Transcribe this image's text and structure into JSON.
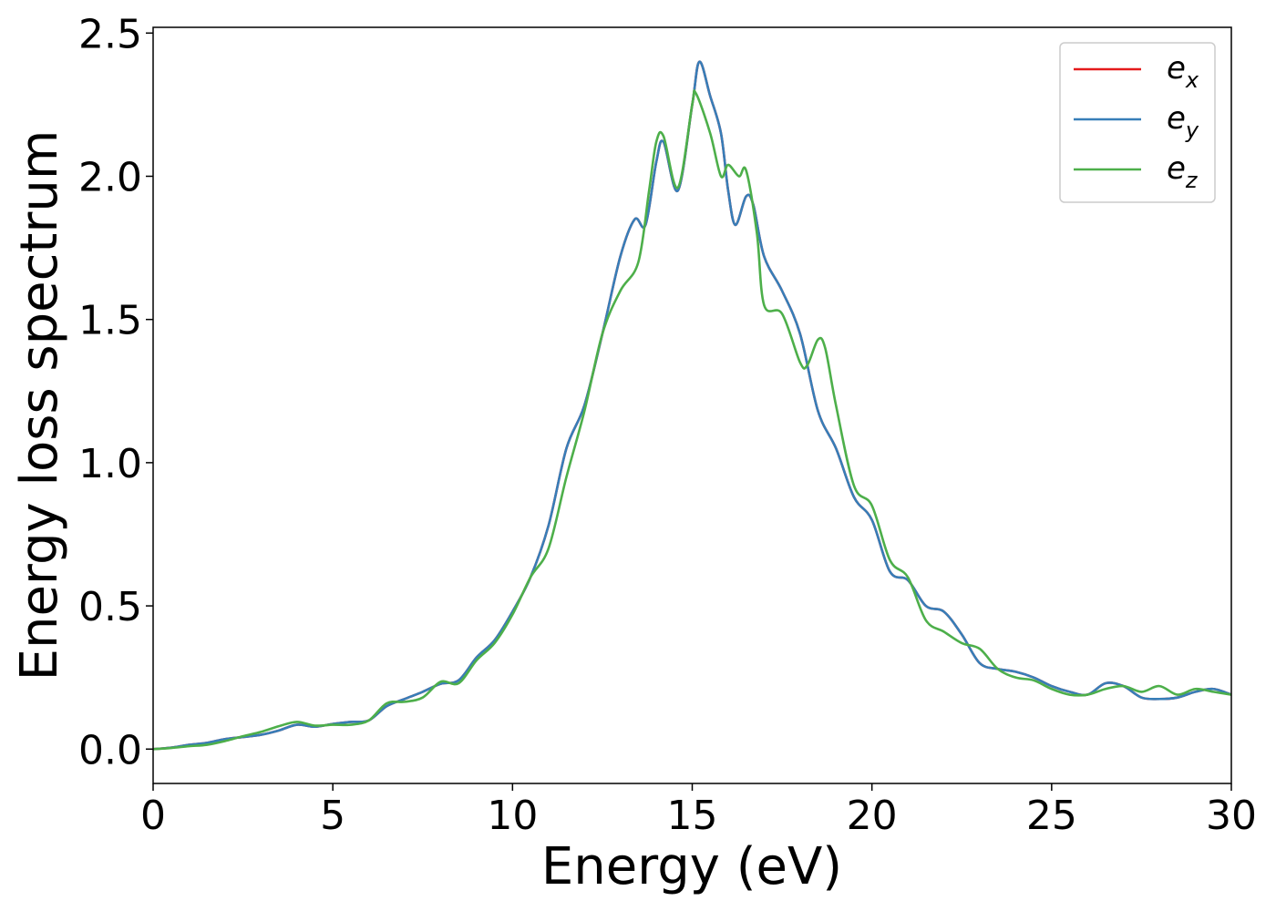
{
  "chart_data": {
    "type": "line",
    "xlabel": "Energy (eV)",
    "ylabel": "Energy loss spectrum",
    "xlim": [
      0,
      30
    ],
    "ylim": [
      -0.12,
      2.52
    ],
    "x_ticks": [
      0,
      5,
      10,
      15,
      20,
      25,
      30
    ],
    "x_tick_labels": [
      "0",
      "5",
      "10",
      "15",
      "20",
      "25",
      "30"
    ],
    "y_ticks": [
      0.0,
      0.5,
      1.0,
      1.5,
      2.0,
      2.5
    ],
    "y_tick_labels": [
      "0.0",
      "0.5",
      "1.0",
      "1.5",
      "2.0",
      "2.5"
    ],
    "grid": false,
    "legend_position": "top-right",
    "series": [
      {
        "name": "e",
        "subscript": "x",
        "color": "#e41a1c",
        "points": [
          [
            0,
            0.0
          ],
          [
            0.5,
            0.005
          ],
          [
            1,
            0.015
          ],
          [
            1.5,
            0.022
          ],
          [
            2,
            0.035
          ],
          [
            2.5,
            0.042
          ],
          [
            3,
            0.05
          ],
          [
            3.5,
            0.065
          ],
          [
            4,
            0.085
          ],
          [
            4.5,
            0.078
          ],
          [
            5,
            0.088
          ],
          [
            5.5,
            0.095
          ],
          [
            6,
            0.1
          ],
          [
            6.5,
            0.15
          ],
          [
            7,
            0.175
          ],
          [
            7.5,
            0.2
          ],
          [
            8,
            0.228
          ],
          [
            8.5,
            0.24
          ],
          [
            9,
            0.32
          ],
          [
            9.5,
            0.38
          ],
          [
            10,
            0.48
          ],
          [
            10.5,
            0.6
          ],
          [
            11,
            0.78
          ],
          [
            11.5,
            1.05
          ],
          [
            12,
            1.2
          ],
          [
            12.5,
            1.45
          ],
          [
            13,
            1.72
          ],
          [
            13.4,
            1.85
          ],
          [
            13.7,
            1.83
          ],
          [
            14,
            2.05
          ],
          [
            14.2,
            2.12
          ],
          [
            14.6,
            1.95
          ],
          [
            15,
            2.25
          ],
          [
            15.2,
            2.4
          ],
          [
            15.5,
            2.28
          ],
          [
            15.8,
            2.15
          ],
          [
            16,
            1.95
          ],
          [
            16.2,
            1.83
          ],
          [
            16.5,
            1.93
          ],
          [
            16.7,
            1.9
          ],
          [
            17,
            1.72
          ],
          [
            17.5,
            1.6
          ],
          [
            18,
            1.45
          ],
          [
            18.5,
            1.18
          ],
          [
            19,
            1.05
          ],
          [
            19.5,
            0.88
          ],
          [
            20,
            0.8
          ],
          [
            20.5,
            0.62
          ],
          [
            21,
            0.59
          ],
          [
            21.5,
            0.5
          ],
          [
            22,
            0.48
          ],
          [
            22.5,
            0.4
          ],
          [
            23,
            0.3
          ],
          [
            23.5,
            0.28
          ],
          [
            24,
            0.27
          ],
          [
            24.5,
            0.25
          ],
          [
            25,
            0.22
          ],
          [
            25.5,
            0.2
          ],
          [
            26,
            0.19
          ],
          [
            26.5,
            0.23
          ],
          [
            27,
            0.22
          ],
          [
            27.5,
            0.18
          ],
          [
            28,
            0.175
          ],
          [
            28.5,
            0.18
          ],
          [
            29,
            0.2
          ],
          [
            29.5,
            0.21
          ],
          [
            30,
            0.19
          ]
        ]
      },
      {
        "name": "e",
        "subscript": "y",
        "color": "#377eb8",
        "points": [
          [
            0,
            0.0
          ],
          [
            0.5,
            0.005
          ],
          [
            1,
            0.015
          ],
          [
            1.5,
            0.022
          ],
          [
            2,
            0.035
          ],
          [
            2.5,
            0.042
          ],
          [
            3,
            0.05
          ],
          [
            3.5,
            0.065
          ],
          [
            4,
            0.085
          ],
          [
            4.5,
            0.078
          ],
          [
            5,
            0.088
          ],
          [
            5.5,
            0.095
          ],
          [
            6,
            0.1
          ],
          [
            6.5,
            0.15
          ],
          [
            7,
            0.175
          ],
          [
            7.5,
            0.2
          ],
          [
            8,
            0.228
          ],
          [
            8.5,
            0.24
          ],
          [
            9,
            0.32
          ],
          [
            9.5,
            0.38
          ],
          [
            10,
            0.48
          ],
          [
            10.5,
            0.6
          ],
          [
            11,
            0.78
          ],
          [
            11.5,
            1.05
          ],
          [
            12,
            1.2
          ],
          [
            12.5,
            1.45
          ],
          [
            13,
            1.72
          ],
          [
            13.4,
            1.85
          ],
          [
            13.7,
            1.83
          ],
          [
            14,
            2.05
          ],
          [
            14.2,
            2.12
          ],
          [
            14.6,
            1.95
          ],
          [
            15,
            2.25
          ],
          [
            15.2,
            2.4
          ],
          [
            15.5,
            2.28
          ],
          [
            15.8,
            2.15
          ],
          [
            16,
            1.95
          ],
          [
            16.2,
            1.83
          ],
          [
            16.5,
            1.93
          ],
          [
            16.7,
            1.9
          ],
          [
            17,
            1.72
          ],
          [
            17.5,
            1.6
          ],
          [
            18,
            1.45
          ],
          [
            18.5,
            1.18
          ],
          [
            19,
            1.05
          ],
          [
            19.5,
            0.88
          ],
          [
            20,
            0.8
          ],
          [
            20.5,
            0.62
          ],
          [
            21,
            0.59
          ],
          [
            21.5,
            0.5
          ],
          [
            22,
            0.48
          ],
          [
            22.5,
            0.4
          ],
          [
            23,
            0.3
          ],
          [
            23.5,
            0.28
          ],
          [
            24,
            0.27
          ],
          [
            24.5,
            0.25
          ],
          [
            25,
            0.22
          ],
          [
            25.5,
            0.2
          ],
          [
            26,
            0.19
          ],
          [
            26.5,
            0.23
          ],
          [
            27,
            0.22
          ],
          [
            27.5,
            0.18
          ],
          [
            28,
            0.175
          ],
          [
            28.5,
            0.18
          ],
          [
            29,
            0.2
          ],
          [
            29.5,
            0.21
          ],
          [
            30,
            0.19
          ]
        ]
      },
      {
        "name": "e",
        "subscript": "z",
        "color": "#4daf4a",
        "points": [
          [
            0,
            0.0
          ],
          [
            0.5,
            0.004
          ],
          [
            1,
            0.01
          ],
          [
            1.5,
            0.015
          ],
          [
            2,
            0.028
          ],
          [
            2.5,
            0.045
          ],
          [
            3,
            0.06
          ],
          [
            3.5,
            0.08
          ],
          [
            4,
            0.095
          ],
          [
            4.5,
            0.082
          ],
          [
            5,
            0.085
          ],
          [
            5.5,
            0.085
          ],
          [
            6,
            0.1
          ],
          [
            6.5,
            0.16
          ],
          [
            7,
            0.165
          ],
          [
            7.5,
            0.18
          ],
          [
            8,
            0.235
          ],
          [
            8.5,
            0.23
          ],
          [
            9,
            0.31
          ],
          [
            9.5,
            0.37
          ],
          [
            10,
            0.47
          ],
          [
            10.5,
            0.6
          ],
          [
            11,
            0.7
          ],
          [
            11.5,
            0.95
          ],
          [
            12,
            1.18
          ],
          [
            12.5,
            1.45
          ],
          [
            13,
            1.6
          ],
          [
            13.5,
            1.7
          ],
          [
            13.8,
            1.95
          ],
          [
            14,
            2.12
          ],
          [
            14.2,
            2.14
          ],
          [
            14.6,
            1.96
          ],
          [
            15,
            2.25
          ],
          [
            15.1,
            2.29
          ],
          [
            15.5,
            2.15
          ],
          [
            15.8,
            2.0
          ],
          [
            16,
            2.04
          ],
          [
            16.3,
            2.0
          ],
          [
            16.5,
            2.02
          ],
          [
            16.8,
            1.8
          ],
          [
            17,
            1.55
          ],
          [
            17.5,
            1.52
          ],
          [
            18,
            1.35
          ],
          [
            18.2,
            1.34
          ],
          [
            18.5,
            1.43
          ],
          [
            18.7,
            1.4
          ],
          [
            19,
            1.2
          ],
          [
            19.5,
            0.92
          ],
          [
            20,
            0.85
          ],
          [
            20.5,
            0.66
          ],
          [
            21,
            0.6
          ],
          [
            21.5,
            0.45
          ],
          [
            22,
            0.41
          ],
          [
            22.5,
            0.37
          ],
          [
            23,
            0.35
          ],
          [
            23.5,
            0.28
          ],
          [
            24,
            0.25
          ],
          [
            24.5,
            0.24
          ],
          [
            25,
            0.21
          ],
          [
            25.5,
            0.19
          ],
          [
            26,
            0.19
          ],
          [
            26.5,
            0.21
          ],
          [
            27,
            0.22
          ],
          [
            27.5,
            0.2
          ],
          [
            28,
            0.22
          ],
          [
            28.5,
            0.19
          ],
          [
            29,
            0.21
          ],
          [
            29.5,
            0.2
          ],
          [
            30,
            0.19
          ]
        ]
      }
    ]
  }
}
